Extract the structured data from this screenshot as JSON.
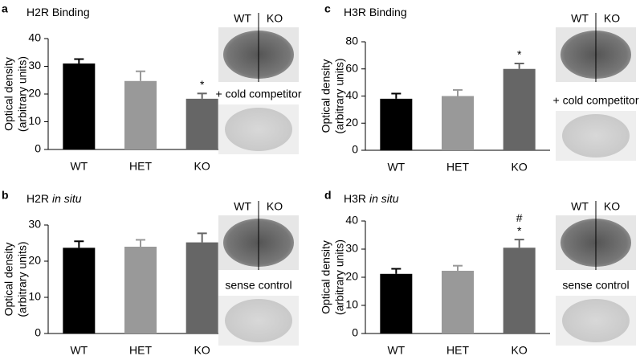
{
  "chart_data": [
    {
      "type": "bar",
      "panel": "a",
      "title": "H2R Binding",
      "ylabel": [
        "Optical density",
        "(arbitrary units)"
      ],
      "categories": [
        "WT",
        "HET",
        "KO"
      ],
      "values": [
        31,
        24.7,
        18.3
      ],
      "errors": [
        1.6,
        3.5,
        1.9
      ],
      "colors": [
        "#000000",
        "#999999",
        "#666666"
      ],
      "ylim": [
        0,
        40
      ],
      "yticks": [
        0,
        10,
        20,
        30,
        40
      ],
      "annotations": [
        {
          "category": "KO",
          "text": [
            "*"
          ]
        }
      ],
      "image_labels": [
        "WT",
        "KO"
      ],
      "control_label": "+ cold competitor"
    },
    {
      "type": "bar",
      "panel": "b",
      "title": "H2R",
      "title_italic": "in situ",
      "ylabel": [
        "Optical density",
        "(arbitrary units)"
      ],
      "categories": [
        "WT",
        "HET",
        "KO"
      ],
      "values": [
        23.7,
        24,
        25.2
      ],
      "errors": [
        1.8,
        1.9,
        2.5
      ],
      "colors": [
        "#000000",
        "#999999",
        "#666666"
      ],
      "ylim": [
        0,
        30
      ],
      "yticks": [
        0,
        10,
        20,
        30
      ],
      "image_labels": [
        "WT",
        "KO"
      ],
      "control_label": "sense control"
    },
    {
      "type": "bar",
      "panel": "c",
      "title": "H3R Binding",
      "ylabel": [
        "Optical density",
        "(arbitrary units)"
      ],
      "categories": [
        "WT",
        "HET",
        "KO"
      ],
      "values": [
        38,
        40,
        60
      ],
      "errors": [
        3.8,
        4.5,
        4
      ],
      "colors": [
        "#000000",
        "#999999",
        "#666666"
      ],
      "ylim": [
        0,
        80
      ],
      "yticks": [
        0,
        20,
        40,
        60,
        80
      ],
      "annotations": [
        {
          "category": "KO",
          "text": [
            "*"
          ]
        }
      ],
      "image_labels": [
        "WT",
        "KO"
      ],
      "control_label": "+ cold competitor"
    },
    {
      "type": "bar",
      "panel": "d",
      "title": "H3R",
      "title_italic": "in situ",
      "ylabel": [
        "Optical density",
        "(arbitrary units)"
      ],
      "categories": [
        "WT",
        "HET",
        "KO"
      ],
      "values": [
        21.2,
        22.3,
        30.5
      ],
      "errors": [
        1.8,
        1.8,
        2.9
      ],
      "colors": [
        "#000000",
        "#999999",
        "#666666"
      ],
      "ylim": [
        0,
        40
      ],
      "yticks": [
        0,
        10,
        20,
        30,
        40
      ],
      "annotations": [
        {
          "category": "KO",
          "text": [
            "#",
            "*"
          ]
        }
      ],
      "image_labels": [
        "WT",
        "KO"
      ],
      "control_label": "sense control"
    }
  ]
}
